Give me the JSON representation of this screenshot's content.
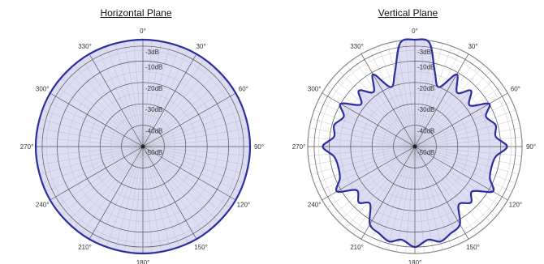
{
  "chart_data": [
    {
      "type": "polar",
      "title": "Horizontal Plane",
      "radial_unit": "dB",
      "rlim": [
        -50,
        0
      ],
      "ring_labels": [
        "-3dB",
        "-10dB",
        "-20dB",
        "-30dB",
        "-40dB",
        "-50dB"
      ],
      "ring_values": [
        -3,
        -10,
        -20,
        -30,
        -40,
        -50
      ],
      "angle_labels": [
        "0°",
        "30°",
        "60°",
        "90°",
        "120°",
        "150°",
        "180°",
        "210°",
        "240°",
        "270°",
        "300°",
        "330°"
      ],
      "angles": [
        0,
        30,
        60,
        90,
        120,
        150,
        180,
        210,
        240,
        270,
        300,
        330
      ],
      "series": [
        {
          "angles": [
            0,
            30,
            60,
            90,
            120,
            150,
            180,
            210,
            240,
            270,
            300,
            330,
            360
          ],
          "values": [
            0,
            0,
            0,
            0,
            0,
            0,
            0,
            0,
            0,
            0,
            0,
            0,
            0
          ]
        }
      ],
      "colors": {
        "line": "#2b2f9e",
        "fill": "#dcdcf2",
        "grid": "#555555"
      }
    },
    {
      "type": "polar",
      "title": "Vertical Plane",
      "radial_unit": "dB",
      "rlim": [
        -50,
        0
      ],
      "ring_labels": [
        "-3dB",
        "-10dB",
        "-20dB",
        "-30dB",
        "-40dB",
        "-50dB"
      ],
      "ring_values": [
        -3,
        -10,
        -20,
        -30,
        -40,
        -50
      ],
      "angle_labels": [
        "0°",
        "30°",
        "60°",
        "90°",
        "120°",
        "150°",
        "180°",
        "210°",
        "240°",
        "270°",
        "300°",
        "330°"
      ],
      "angles": [
        0,
        30,
        60,
        90,
        120,
        150,
        180,
        210,
        240,
        270,
        300,
        330
      ],
      "series": [
        {
          "angles": [
            0,
            8,
            15,
            22,
            30,
            38,
            45,
            53,
            60,
            67,
            75,
            83,
            90,
            97,
            105,
            113,
            120,
            128,
            135,
            143,
            150,
            158,
            165,
            172,
            180,
            188,
            195,
            202,
            210,
            218,
            225,
            233,
            240,
            247,
            255,
            263,
            270,
            277,
            285,
            293,
            300,
            308,
            315,
            323,
            330,
            338,
            345,
            352,
            360
          ],
          "values": [
            0,
            -1,
            -14,
            -20,
            -11,
            -18,
            -13,
            -18,
            -10,
            -14,
            -11,
            -12,
            -7,
            -12,
            -13,
            -12,
            -8,
            -16,
            -13,
            -16,
            -8,
            -6,
            -4,
            -6,
            -3,
            -6,
            -4,
            -6,
            -8,
            -16,
            -13,
            -16,
            -8,
            -12,
            -13,
            -12,
            -7,
            -12,
            -11,
            -14,
            -10,
            -18,
            -13,
            -18,
            -11,
            -20,
            -14,
            -1,
            0
          ]
        }
      ],
      "colors": {
        "line": "#2b2f9e",
        "fill": "#dcdcf2",
        "grid": "#555555"
      }
    }
  ]
}
